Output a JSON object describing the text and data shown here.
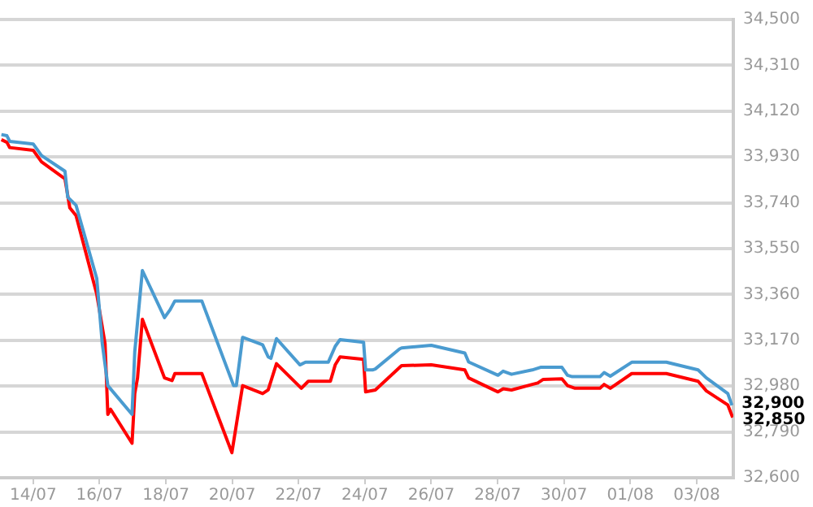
{
  "chart_data": {
    "type": "line",
    "xlim": [
      "--07-13T00:00",
      "--08-04T02:30"
    ],
    "xticks": [
      {
        "value": "--07-14",
        "label": "14/07"
      },
      {
        "value": "--07-16",
        "label": "16/07"
      },
      {
        "value": "--07-18",
        "label": "18/07"
      },
      {
        "value": "--07-20",
        "label": "20/07"
      },
      {
        "value": "--07-22",
        "label": "22/07"
      },
      {
        "value": "--07-24",
        "label": "24/07"
      },
      {
        "value": "--07-26",
        "label": "26/07"
      },
      {
        "value": "--07-28",
        "label": "28/07"
      },
      {
        "value": "--07-30",
        "label": "30/07"
      },
      {
        "value": "--08-01",
        "label": "01/08"
      },
      {
        "value": "--08-03",
        "label": "03/08"
      }
    ],
    "ylim": [
      32600,
      34500
    ],
    "yticks": [
      {
        "value": 32600,
        "label": "32,600"
      },
      {
        "value": 32790,
        "label": "32,790"
      },
      {
        "value": 32980,
        "label": "32,980"
      },
      {
        "value": 33170,
        "label": "33,170"
      },
      {
        "value": 33360,
        "label": "33,360"
      },
      {
        "value": 33550,
        "label": "33,550"
      },
      {
        "value": 33740,
        "label": "33,740"
      },
      {
        "value": 33930,
        "label": "33,930"
      },
      {
        "value": 34120,
        "label": "34,120"
      },
      {
        "value": 34310,
        "label": "34,310"
      },
      {
        "value": 34500,
        "label": "34,500"
      }
    ],
    "grid": "y",
    "legend": false,
    "marker": "none",
    "line_style": "solid",
    "series": [
      {
        "color": "#4a9bd0",
        "x": [
          "--07-13T01:00",
          "--07-13T05:00",
          "--07-13T07:00",
          "--07-14T00:00",
          "--07-14T06:00",
          "--07-14T23:00",
          "--07-15T01:00",
          "--07-15T07:00",
          "--07-15T22:00",
          "--07-16T02:00",
          "--07-16T06:00",
          "--07-16T23:30",
          "--07-17T01:30",
          "--07-17T07:00",
          "--07-17T23:00",
          "--07-18T03:00",
          "--07-18T06:30",
          "--07-19T02:00",
          "--07-20T01:00",
          "--07-20T03:00",
          "--07-20T07:30",
          "--07-20T22:00",
          "--07-21T02:00",
          "--07-21T04:00",
          "--07-21T08:00",
          "--07-22T01:00",
          "--07-22T05:00",
          "--07-22T21:30",
          "--07-23T02:30",
          "--07-23T06:00",
          "--07-23T23:00",
          "--07-24T00:30",
          "--07-24T05:30",
          "--07-24T07:30",
          "--07-25T01:00",
          "--07-25T02:30",
          "--07-26T00:00",
          "--07-27T00:15",
          "--07-27T03:00",
          "--07-28T00:15",
          "--07-28T04:00",
          "--07-28T10:00",
          "--07-29T01:00",
          "--07-29T07:00",
          "--07-29T22:30",
          "--07-30T02:30",
          "--07-30T06:00",
          "--07-31T02:00",
          "--07-31T05:00",
          "--07-31T09:30",
          "--08-01T01:00",
          "--08-02T02:00",
          "--08-03T01:00",
          "--08-03T07:00",
          "--08-03T22:30",
          "--08-04T01:30"
        ],
        "values": [
          34023,
          34018,
          33995,
          33984,
          33936,
          33871,
          33763,
          33730,
          33426,
          33156,
          32982,
          32863,
          33123,
          33459,
          33264,
          33296,
          33333,
          33333,
          32982,
          32982,
          33182,
          33151,
          33101,
          33095,
          33177,
          33068,
          33079,
          33079,
          33145,
          33173,
          33162,
          33047,
          33047,
          33051,
          33134,
          33138,
          33149,
          33117,
          33080,
          33025,
          33042,
          33029,
          33047,
          33058,
          33058,
          33025,
          33019,
          33019,
          33036,
          33021,
          33079,
          33079,
          33047,
          33014,
          32949,
          32900
        ]
      },
      {
        "color": "#ff0000",
        "x": [
          "--07-13T01:00",
          "--07-13T05:00",
          "--07-13T07:00",
          "--07-14T00:00",
          "--07-14T06:00",
          "--07-14T23:00",
          "--07-15T02:30",
          "--07-15T07:00",
          "--07-15T22:00",
          "--07-16T04:00",
          "--07-16T06:00",
          "--07-16T08:00",
          "--07-16T23:30",
          "--07-17T01:30",
          "--07-17T03:30",
          "--07-17T07:00",
          "--07-17T23:00",
          "--07-18T04:30",
          "--07-18T06:30",
          "--07-19T02:00",
          "--07-19T23:45",
          "--07-20T07:30",
          "--07-20T22:00",
          "--07-21T02:00",
          "--07-21T08:00",
          "--07-22T02:00",
          "--07-22T07:00",
          "--07-22T23:00",
          "--07-23T02:30",
          "--07-23T06:00",
          "--07-23T23:00",
          "--07-24T00:30",
          "--07-24T07:30",
          "--07-25T02:30",
          "--07-26T00:00",
          "--07-27T00:15",
          "--07-27T03:00",
          "--07-28T00:15",
          "--07-28T04:00",
          "--07-28T10:00",
          "--07-29T01:00",
          "--07-29T05:00",
          "--07-29T09:00",
          "--07-29T22:30",
          "--07-30T02:30",
          "--07-30T08:00",
          "--07-31T02:00",
          "--07-31T05:00",
          "--07-31T09:30",
          "--08-01T01:00",
          "--08-02T02:00",
          "--08-03T01:00",
          "--08-03T07:00",
          "--08-03T22:30",
          "--08-04T02:00"
        ],
        "values": [
          34002,
          33991,
          33969,
          33958,
          33910,
          33839,
          33719,
          33687,
          33361,
          33156,
          32863,
          32884,
          32743,
          32949,
          33014,
          33257,
          33014,
          33003,
          33032,
          33032,
          32704,
          32982,
          32949,
          32964,
          33073,
          32971,
          33000,
          33000,
          33068,
          33101,
          33091,
          32956,
          32964,
          33065,
          33068,
          33047,
          33014,
          32956,
          32969,
          32964,
          32987,
          32993,
          33008,
          33010,
          32982,
          32971,
          32971,
          32987,
          32971,
          33032,
          33032,
          33000,
          32960,
          32902,
          32850
        ]
      }
    ],
    "annotations": [
      {
        "text": "32,900",
        "x": "--08-04T01:30",
        "y": 32900
      },
      {
        "text": "32,850",
        "x": "--08-04T02:00",
        "y": 32850
      }
    ]
  }
}
